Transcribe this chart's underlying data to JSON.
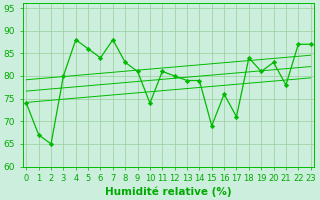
{
  "xlabel": "Humidité relative (%)",
  "x_data": [
    0,
    1,
    2,
    3,
    4,
    5,
    6,
    7,
    8,
    9,
    10,
    11,
    12,
    13,
    14,
    15,
    16,
    17,
    18,
    19,
    20,
    21,
    22,
    23
  ],
  "y_data": [
    74,
    67,
    65,
    80,
    88,
    86,
    84,
    88,
    83,
    81,
    74,
    81,
    80,
    79,
    79,
    69,
    76,
    71,
    84,
    81,
    83,
    78,
    87,
    87
  ],
  "line_color": "#00bb00",
  "bg_color": "#cceedd",
  "grid_color": "#99cc99",
  "ylim": [
    60,
    96
  ],
  "xlim": [
    -0.3,
    23.3
  ],
  "tick_color": "#00aa00",
  "label_color": "#00aa00",
  "font_size": 6.5,
  "trend_offsets": [
    -2.5,
    0.0,
    2.5
  ]
}
